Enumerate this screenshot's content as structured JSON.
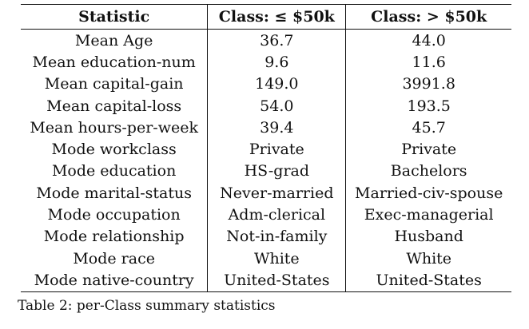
{
  "table": {
    "headers": [
      "Statistic",
      "Class: ≤ $50k",
      "Class: > $50k"
    ],
    "rows": [
      [
        "Mean Age",
        "36.7",
        "44.0"
      ],
      [
        "Mean education-num",
        "9.6",
        "11.6"
      ],
      [
        "Mean capital-gain",
        "149.0",
        "3991.8"
      ],
      [
        "Mean capital-loss",
        "54.0",
        "193.5"
      ],
      [
        "Mean hours-per-week",
        "39.4",
        "45.7"
      ],
      [
        "Mode workclass",
        "Private",
        "Private"
      ],
      [
        "Mode education",
        "HS-grad",
        "Bachelors"
      ],
      [
        "Mode marital-status",
        "Never-married",
        "Married-civ-spouse"
      ],
      [
        "Mode occupation",
        "Adm-clerical",
        "Exec-managerial"
      ],
      [
        "Mode relationship",
        "Not-in-family",
        "Husband"
      ],
      [
        "Mode race",
        "White",
        "White"
      ],
      [
        "Mode native-country",
        "United-States",
        "United-States"
      ]
    ]
  },
  "caption": "Table 2: per-Class summary statistics"
}
